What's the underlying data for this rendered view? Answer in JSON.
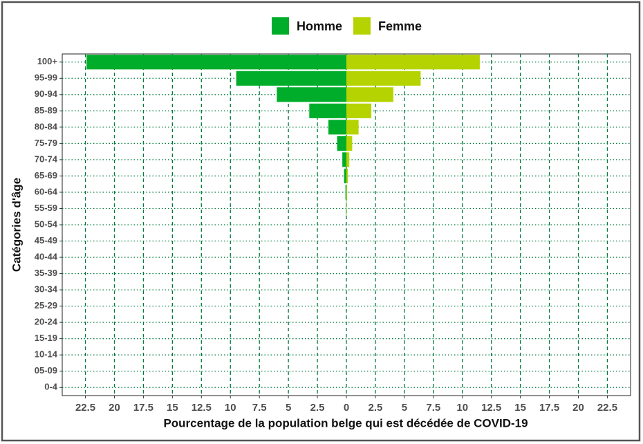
{
  "chart_data": {
    "type": "bar",
    "orientation": "horizontal",
    "stacked_diverging": true,
    "x_label": "Pourcentage de la population belge qui est décédée de COVID-19",
    "y_label": "Catégories d'âge",
    "categories": [
      "0-4",
      "05-09",
      "10-14",
      "15-19",
      "20-24",
      "25-29",
      "30-34",
      "35-39",
      "40-44",
      "45-49",
      "50-54",
      "55-59",
      "60-64",
      "65-69",
      "70-74",
      "75-79",
      "80-84",
      "85-89",
      "90-94",
      "95-99",
      "100+"
    ],
    "series": [
      {
        "name": "Homme",
        "color": "#00ad2a",
        "values": [
          0,
          0,
          0,
          0,
          0,
          0,
          0,
          0,
          0,
          0,
          0,
          -0.03,
          -0.08,
          -0.2,
          -0.35,
          -0.8,
          -1.55,
          -3.2,
          -6.0,
          -9.5,
          -22.4
        ]
      },
      {
        "name": "Femme",
        "color": "#b5d300",
        "values": [
          0,
          0,
          0,
          0,
          0,
          0,
          0,
          0,
          0,
          0,
          0,
          0.02,
          0.05,
          0.12,
          0.25,
          0.5,
          1.05,
          2.15,
          4.05,
          6.4,
          11.5
        ]
      }
    ],
    "xlim": [
      -24.5,
      24.5
    ],
    "xticks": [
      {
        "value": -22.5,
        "label": "22.5"
      },
      {
        "value": -20,
        "label": "20"
      },
      {
        "value": -17.5,
        "label": "17.5"
      },
      {
        "value": -15,
        "label": "15"
      },
      {
        "value": -12.5,
        "label": "12.5"
      },
      {
        "value": -10,
        "label": "10"
      },
      {
        "value": -7.5,
        "label": "7.5"
      },
      {
        "value": -5,
        "label": "5"
      },
      {
        "value": -2.5,
        "label": "2.5"
      },
      0,
      2.5,
      5,
      7.5,
      10,
      12.5,
      15,
      17.5,
      20,
      22.5
    ],
    "grid": true,
    "grid_color": "#007a3d",
    "legend": "top"
  }
}
